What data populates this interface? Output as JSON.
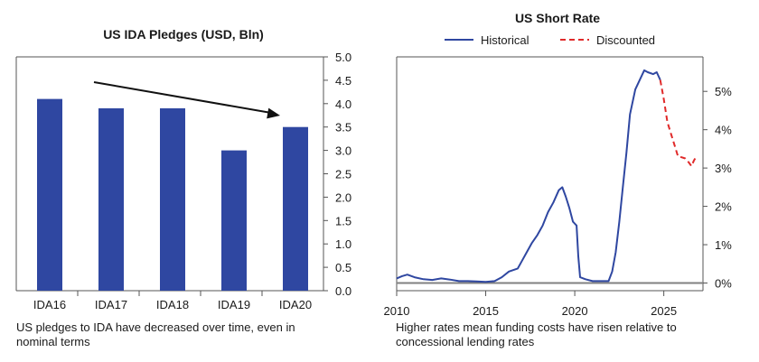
{
  "chart_data": [
    {
      "type": "bar",
      "title": "US IDA Pledges (USD, Bln)",
      "categories": [
        "IDA16",
        "IDA17",
        "IDA18",
        "IDA19",
        "IDA20"
      ],
      "values": [
        4.1,
        3.9,
        3.9,
        3.0,
        3.5
      ],
      "ylim": [
        0,
        5
      ],
      "yticks": [
        "0.0",
        "0.5",
        "1.0",
        "1.5",
        "2.0",
        "2.5",
        "3.0",
        "3.5",
        "4.0",
        "4.5",
        "5.0"
      ],
      "y_axis_side": "right",
      "bar_color": "#2f47a1",
      "annotation": "downward trend arrow from IDA17 to IDA20",
      "caption": "US pledges to IDA have decreased over time, even in nominal terms"
    },
    {
      "type": "line",
      "title": "US Short Rate",
      "xlim": [
        2010,
        2027.2
      ],
      "ylim": [
        -0.2,
        5.9
      ],
      "xticks": [
        "2010",
        "2015",
        "2020",
        "2025"
      ],
      "yticks": [
        "0%",
        "1%",
        "2%",
        "3%",
        "4%",
        "5%"
      ],
      "y_axis_side": "right",
      "legend_position": "top",
      "series": [
        {
          "name": "Historical",
          "color": "#2f47a1",
          "style": "solid",
          "points": [
            [
              2010.0,
              0.12
            ],
            [
              2010.3,
              0.18
            ],
            [
              2010.6,
              0.22
            ],
            [
              2011.0,
              0.15
            ],
            [
              2011.5,
              0.1
            ],
            [
              2012.0,
              0.08
            ],
            [
              2012.5,
              0.12
            ],
            [
              2013.0,
              0.09
            ],
            [
              2013.5,
              0.05
            ],
            [
              2014.0,
              0.05
            ],
            [
              2014.5,
              0.04
            ],
            [
              2015.0,
              0.03
            ],
            [
              2015.5,
              0.05
            ],
            [
              2015.9,
              0.15
            ],
            [
              2016.3,
              0.3
            ],
            [
              2016.8,
              0.38
            ],
            [
              2017.0,
              0.55
            ],
            [
              2017.3,
              0.8
            ],
            [
              2017.6,
              1.05
            ],
            [
              2017.9,
              1.25
            ],
            [
              2018.2,
              1.5
            ],
            [
              2018.5,
              1.85
            ],
            [
              2018.8,
              2.1
            ],
            [
              2019.1,
              2.42
            ],
            [
              2019.3,
              2.5
            ],
            [
              2019.5,
              2.25
            ],
            [
              2019.7,
              1.95
            ],
            [
              2019.9,
              1.6
            ],
            [
              2020.1,
              1.5
            ],
            [
              2020.2,
              0.7
            ],
            [
              2020.3,
              0.15
            ],
            [
              2020.6,
              0.1
            ],
            [
              2021.0,
              0.05
            ],
            [
              2021.5,
              0.05
            ],
            [
              2021.9,
              0.05
            ],
            [
              2022.1,
              0.3
            ],
            [
              2022.3,
              0.8
            ],
            [
              2022.5,
              1.6
            ],
            [
              2022.7,
              2.5
            ],
            [
              2022.9,
              3.4
            ],
            [
              2023.1,
              4.4
            ],
            [
              2023.4,
              5.05
            ],
            [
              2023.7,
              5.35
            ],
            [
              2023.9,
              5.55
            ],
            [
              2024.1,
              5.5
            ],
            [
              2024.4,
              5.45
            ],
            [
              2024.6,
              5.5
            ],
            [
              2024.8,
              5.3
            ]
          ]
        },
        {
          "name": "Discounted",
          "color": "#e02a2a",
          "style": "dashed",
          "points": [
            [
              2024.8,
              5.3
            ],
            [
              2025.0,
              4.8
            ],
            [
              2025.2,
              4.2
            ],
            [
              2025.4,
              3.9
            ],
            [
              2025.6,
              3.6
            ],
            [
              2025.8,
              3.3
            ],
            [
              2026.0,
              3.28
            ],
            [
              2026.2,
              3.25
            ],
            [
              2026.4,
              3.15
            ],
            [
              2026.55,
              3.05
            ],
            [
              2026.7,
              3.2
            ],
            [
              2026.8,
              3.28
            ]
          ]
        }
      ],
      "caption": "Higher rates mean funding costs have risen relative to concessional lending rates"
    }
  ]
}
